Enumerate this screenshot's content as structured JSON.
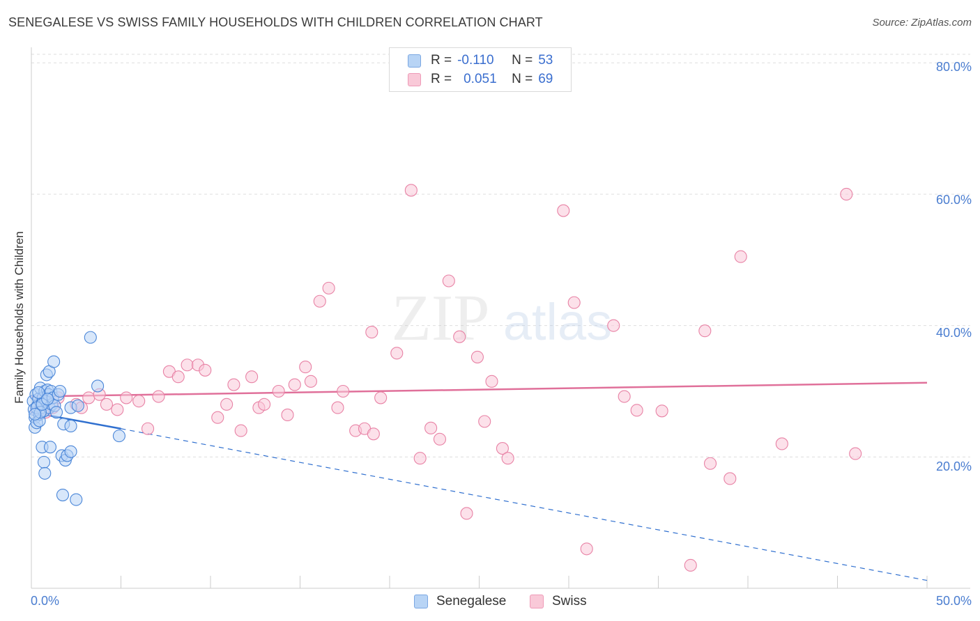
{
  "title": "SENEGALESE VS SWISS FAMILY HOUSEHOLDS WITH CHILDREN CORRELATION CHART",
  "source": "Source: ZipAtlas.com",
  "watermark": {
    "zip": "ZIP",
    "atlas": "atlas"
  },
  "legend": {
    "senegalese": {
      "r_label": "R =",
      "r_value": "-0.110",
      "n_label": "N =",
      "n_value": "53"
    },
    "swiss": {
      "r_label": "R =",
      "r_value": "0.051",
      "n_label": "N =",
      "n_value": "69"
    }
  },
  "bottom_legend": {
    "senegalese": "Senegalese",
    "swiss": "Swiss"
  },
  "colors": {
    "senegalese_fill": "#b8d4f5",
    "senegalese_stroke": "#4a86d8",
    "senegalese_line": "#2f6fcf",
    "swiss_fill": "#f9c9d8",
    "swiss_stroke": "#e882a5",
    "swiss_line": "#e0709a",
    "grid": "#dedede",
    "tick_text": "#4a7dd0"
  },
  "chart_data": {
    "type": "scatter",
    "title": "SENEGALESE VS SWISS FAMILY HOUSEHOLDS WITH CHILDREN CORRELATION CHART",
    "xlabel": "",
    "ylabel": "Family Households with Children",
    "xlim": [
      0,
      50
    ],
    "ylim": [
      0,
      83
    ],
    "x_tick_labels": [
      "0.0%",
      "50.0%"
    ],
    "y_ticks": [
      20,
      40,
      60,
      80
    ],
    "y_tick_labels": [
      "20.0%",
      "40.0%",
      "60.0%",
      "80.0%"
    ],
    "grid": true,
    "series": [
      {
        "name": "Senegalese",
        "R": -0.11,
        "N": 53,
        "trend": {
          "x_start": 0,
          "y_start": 26.8,
          "x_end": 5,
          "y_end": 24.3,
          "dashed_to_x": 50,
          "dashed_end_y": 1.2
        },
        "points": [
          [
            0.1,
            28.5
          ],
          [
            0.15,
            27.2
          ],
          [
            0.2,
            26.0
          ],
          [
            0.2,
            24.5
          ],
          [
            0.25,
            29.5
          ],
          [
            0.3,
            25.2
          ],
          [
            0.35,
            27.8
          ],
          [
            0.4,
            28.8
          ],
          [
            0.45,
            26.5
          ],
          [
            0.45,
            25.5
          ],
          [
            0.5,
            30.5
          ],
          [
            0.55,
            27.5
          ],
          [
            0.6,
            28.2
          ],
          [
            0.6,
            21.5
          ],
          [
            0.65,
            29.0
          ],
          [
            0.7,
            27.0
          ],
          [
            0.75,
            30.0
          ],
          [
            0.8,
            28.5
          ],
          [
            0.85,
            32.5
          ],
          [
            0.9,
            30.2
          ],
          [
            0.95,
            29.5
          ],
          [
            1.0,
            33.0
          ],
          [
            1.0,
            27.5
          ],
          [
            1.05,
            21.5
          ],
          [
            1.1,
            30.0
          ],
          [
            1.15,
            28.0
          ],
          [
            1.2,
            29.0
          ],
          [
            1.25,
            34.5
          ],
          [
            1.3,
            27.8
          ],
          [
            1.4,
            26.8
          ],
          [
            1.5,
            29.5
          ],
          [
            1.6,
            30.0
          ],
          [
            1.7,
            20.2
          ],
          [
            1.75,
            14.2
          ],
          [
            1.8,
            25.0
          ],
          [
            1.9,
            19.5
          ],
          [
            2.0,
            20.2
          ],
          [
            2.2,
            27.5
          ],
          [
            2.2,
            24.7
          ],
          [
            2.2,
            20.8
          ],
          [
            2.5,
            13.5
          ],
          [
            2.6,
            27.8
          ],
          [
            3.3,
            38.2
          ],
          [
            3.7,
            30.8
          ],
          [
            4.9,
            23.2
          ],
          [
            0.3,
            27.5
          ],
          [
            0.5,
            26.8
          ],
          [
            0.7,
            19.2
          ],
          [
            0.75,
            17.5
          ],
          [
            0.4,
            29.8
          ],
          [
            0.6,
            28.0
          ],
          [
            0.9,
            28.8
          ],
          [
            0.2,
            26.5
          ]
        ]
      },
      {
        "name": "Swiss",
        "R": 0.051,
        "N": 69,
        "trend": {
          "x_start": 0,
          "y_start": 29.2,
          "x_end": 50,
          "y_end": 31.3
        },
        "points": [
          [
            0.3,
            27.0
          ],
          [
            0.5,
            28.5
          ],
          [
            0.8,
            26.8
          ],
          [
            1.2,
            27.5
          ],
          [
            1.5,
            29.0
          ],
          [
            2.5,
            28.0
          ],
          [
            2.8,
            27.5
          ],
          [
            3.2,
            29.0
          ],
          [
            3.8,
            29.5
          ],
          [
            4.2,
            28.0
          ],
          [
            4.8,
            27.2
          ],
          [
            5.3,
            29.0
          ],
          [
            6.0,
            28.5
          ],
          [
            6.5,
            24.3
          ],
          [
            7.1,
            29.2
          ],
          [
            7.7,
            33.0
          ],
          [
            8.2,
            32.2
          ],
          [
            8.7,
            34.0
          ],
          [
            9.3,
            34.0
          ],
          [
            9.7,
            33.2
          ],
          [
            10.4,
            26.0
          ],
          [
            10.9,
            28.0
          ],
          [
            11.3,
            31.0
          ],
          [
            11.7,
            24.0
          ],
          [
            12.3,
            32.2
          ],
          [
            12.7,
            27.5
          ],
          [
            13.0,
            28.0
          ],
          [
            13.8,
            30.0
          ],
          [
            14.3,
            26.4
          ],
          [
            14.7,
            31.0
          ],
          [
            15.3,
            33.7
          ],
          [
            15.6,
            31.5
          ],
          [
            16.1,
            43.7
          ],
          [
            16.6,
            45.7
          ],
          [
            17.1,
            27.5
          ],
          [
            17.4,
            30.0
          ],
          [
            18.1,
            24.0
          ],
          [
            18.6,
            24.3
          ],
          [
            19.1,
            23.5
          ],
          [
            19.0,
            39.0
          ],
          [
            19.5,
            29.0
          ],
          [
            20.4,
            35.8
          ],
          [
            21.2,
            60.6
          ],
          [
            21.7,
            19.8
          ],
          [
            22.3,
            24.4
          ],
          [
            22.8,
            22.7
          ],
          [
            23.3,
            46.8
          ],
          [
            23.9,
            38.3
          ],
          [
            24.3,
            11.4
          ],
          [
            24.9,
            35.2
          ],
          [
            25.3,
            25.4
          ],
          [
            25.7,
            31.5
          ],
          [
            26.3,
            21.3
          ],
          [
            26.6,
            19.8
          ],
          [
            29.7,
            57.5
          ],
          [
            30.3,
            43.5
          ],
          [
            31.0,
            6.0
          ],
          [
            32.5,
            40.0
          ],
          [
            33.1,
            29.2
          ],
          [
            33.8,
            27.1
          ],
          [
            35.2,
            27.0
          ],
          [
            36.8,
            3.5
          ],
          [
            37.6,
            39.2
          ],
          [
            37.9,
            19.0
          ],
          [
            39.6,
            50.5
          ],
          [
            39.0,
            16.7
          ],
          [
            41.9,
            22.0
          ],
          [
            45.5,
            60.0
          ],
          [
            46.0,
            20.5
          ]
        ]
      }
    ]
  }
}
